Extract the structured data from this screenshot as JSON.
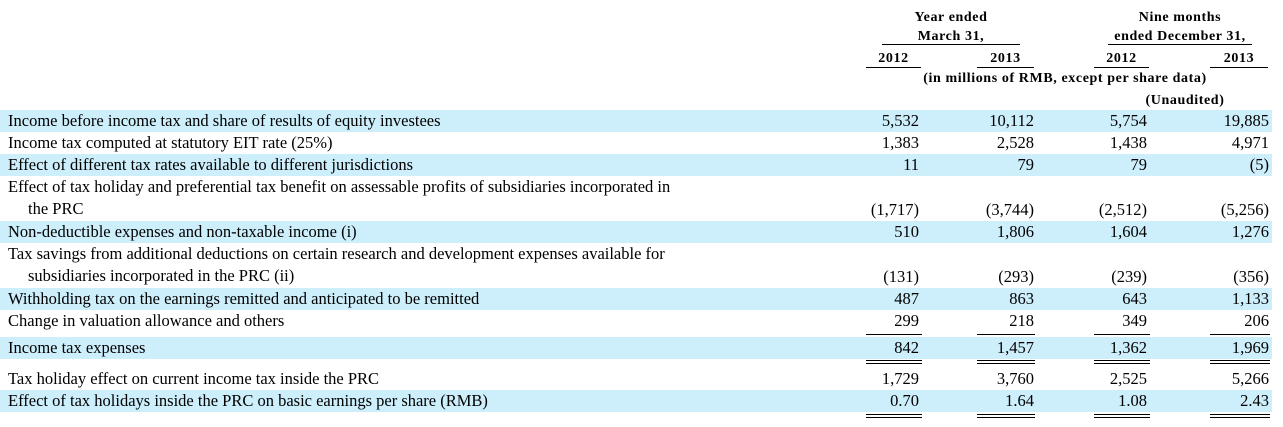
{
  "header": {
    "group1_line1": "Year ended",
    "group1_line2": "March 31,",
    "group2_line1": "Nine months",
    "group2_line2": "ended December 31,",
    "years": [
      "2012",
      "2013",
      "2012",
      "2013"
    ],
    "units": "(in millions of RMB, except per share data)",
    "unaudited": "(Unaudited)"
  },
  "rows": [
    {
      "label": "Income before income tax and share of results of equity investees",
      "label2": "",
      "values": [
        "5,532",
        "10,112",
        "5,754",
        "19,885"
      ]
    },
    {
      "label": "Income tax computed at statutory EIT rate (25%)",
      "label2": "",
      "values": [
        "1,383",
        "2,528",
        "1,438",
        "4,971"
      ]
    },
    {
      "label": "Effect of different tax rates available to different jurisdictions",
      "label2": "",
      "values": [
        "11",
        "79",
        "79",
        "(5)"
      ]
    },
    {
      "label": "Effect of tax holiday and preferential tax benefit on assessable profits of subsidiaries incorporated in",
      "label2": "the PRC",
      "values": [
        "(1,717)",
        "(3,744)",
        "(2,512)",
        "(5,256)"
      ]
    },
    {
      "label": "Non-deductible expenses and non-taxable income (i)",
      "label2": "",
      "values": [
        "510",
        "1,806",
        "1,604",
        "1,276"
      ]
    },
    {
      "label": "Tax savings from additional deductions on certain research and development expenses available for",
      "label2": "subsidiaries incorporated in the PRC (ii)",
      "values": [
        "(131)",
        "(293)",
        "(239)",
        "(356)"
      ]
    },
    {
      "label": "Withholding tax on the earnings remitted and anticipated to be remitted",
      "label2": "",
      "values": [
        "487",
        "863",
        "643",
        "1,133"
      ]
    },
    {
      "label": "Change in valuation allowance and others",
      "label2": "",
      "values": [
        "299",
        "218",
        "349",
        "206"
      ]
    },
    {
      "label": "Income tax expenses",
      "label2": "",
      "values": [
        "842",
        "1,457",
        "1,362",
        "1,969"
      ]
    },
    {
      "label": "Tax holiday effect on current income tax inside the PRC",
      "label2": "",
      "values": [
        "1,729",
        "3,760",
        "2,525",
        "5,266"
      ]
    },
    {
      "label": "Effect of tax holidays inside the PRC on basic earnings per share (RMB)",
      "label2": "",
      "values": [
        "0.70",
        "1.64",
        "1.08",
        "2.43"
      ]
    }
  ]
}
